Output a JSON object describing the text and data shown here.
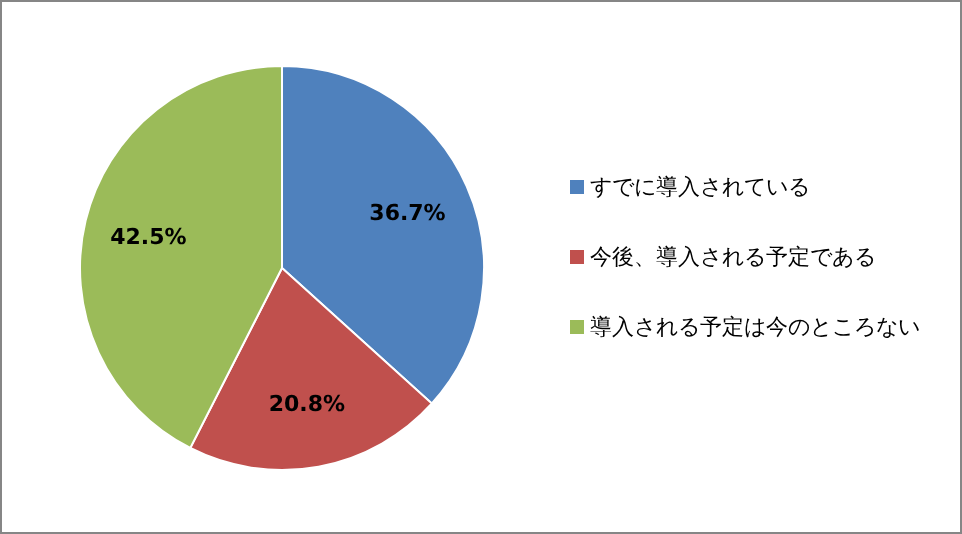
{
  "chart_data": {
    "type": "pie",
    "categories": [
      "すでに導入されている",
      "今後、導入される予定である",
      "導入される予定は今のところない"
    ],
    "values": [
      36.7,
      20.8,
      42.5
    ],
    "colors": [
      "#4f81bd",
      "#c0504d",
      "#9bbb59"
    ],
    "value_labels": [
      "36.7%",
      "20.8%",
      "42.5%"
    ],
    "legend": "right"
  }
}
